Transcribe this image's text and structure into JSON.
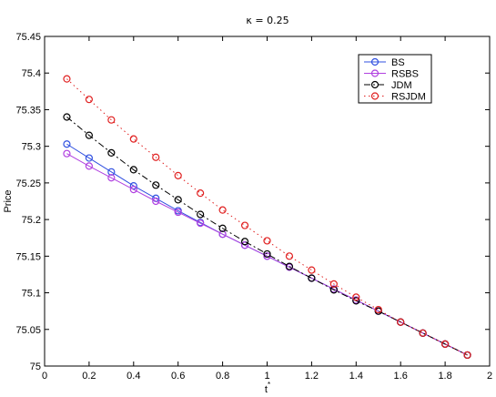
{
  "chart_data": {
    "type": "line",
    "title": "κ = 0.25",
    "xlabel": "t*",
    "ylabel": "Price",
    "xlim": [
      0,
      2
    ],
    "ylim": [
      75,
      75.45
    ],
    "xticks": [
      "0",
      "0.2",
      "0.4",
      "0.6",
      "0.8",
      "1",
      "1.2",
      "1.4",
      "1.6",
      "1.8",
      "2"
    ],
    "yticks": [
      "75",
      "75.05",
      "75.1",
      "75.15",
      "75.2",
      "75.25",
      "75.3",
      "75.35",
      "75.4",
      "75.45"
    ],
    "grid": false,
    "legend_position": "top-right",
    "series": [
      {
        "name": "BS",
        "color": "#3050e0",
        "line_style": "solid",
        "marker": "circle-open",
        "x": [
          0.1,
          0.2,
          0.3,
          0.4,
          0.5,
          0.6,
          0.7,
          0.8,
          0.9,
          1.0,
          1.1,
          1.2,
          1.3,
          1.4,
          1.5,
          1.6,
          1.7,
          1.8,
          1.9
        ],
        "y": [
          75.303,
          75.284,
          75.265,
          75.246,
          75.229,
          75.212,
          75.196,
          75.18,
          75.165,
          75.15,
          75.135,
          75.12,
          75.105,
          75.09,
          75.075,
          75.06,
          75.045,
          75.03,
          75.015
        ]
      },
      {
        "name": "RSBS",
        "color": "#b040e0",
        "line_style": "solid",
        "marker": "circle-open",
        "x": [
          0.1,
          0.2,
          0.3,
          0.4,
          0.5,
          0.6,
          0.7,
          0.8,
          0.9,
          1.0,
          1.1,
          1.2,
          1.3,
          1.4,
          1.5,
          1.6,
          1.7,
          1.8,
          1.9
        ],
        "y": [
          75.29,
          75.273,
          75.257,
          75.241,
          75.225,
          75.21,
          75.195,
          75.18,
          75.165,
          75.15,
          75.135,
          75.12,
          75.105,
          75.09,
          75.075,
          75.06,
          75.045,
          75.03,
          75.015
        ]
      },
      {
        "name": "JDM",
        "color": "#000000",
        "line_style": "dash-dot",
        "marker": "circle-open",
        "x": [
          0.1,
          0.2,
          0.3,
          0.4,
          0.5,
          0.6,
          0.7,
          0.8,
          0.9,
          1.0,
          1.1,
          1.2,
          1.3,
          1.4,
          1.5,
          1.6,
          1.7,
          1.8,
          1.9
        ],
        "y": [
          75.34,
          75.315,
          75.291,
          75.268,
          75.247,
          75.227,
          75.207,
          75.188,
          75.17,
          75.153,
          75.136,
          75.12,
          75.104,
          75.089,
          75.075,
          75.06,
          75.045,
          75.03,
          75.015
        ]
      },
      {
        "name": "RSJDM",
        "color": "#e02020",
        "line_style": "dotted",
        "marker": "circle-open",
        "x": [
          0.1,
          0.2,
          0.3,
          0.4,
          0.5,
          0.6,
          0.7,
          0.8,
          0.9,
          1.0,
          1.1,
          1.2,
          1.3,
          1.4,
          1.5,
          1.6,
          1.7,
          1.8,
          1.9
        ],
        "y": [
          75.392,
          75.364,
          75.336,
          75.31,
          75.285,
          75.26,
          75.236,
          75.213,
          75.192,
          75.171,
          75.15,
          75.131,
          75.112,
          75.094,
          75.077,
          75.06,
          75.045,
          75.03,
          75.015
        ]
      }
    ]
  }
}
